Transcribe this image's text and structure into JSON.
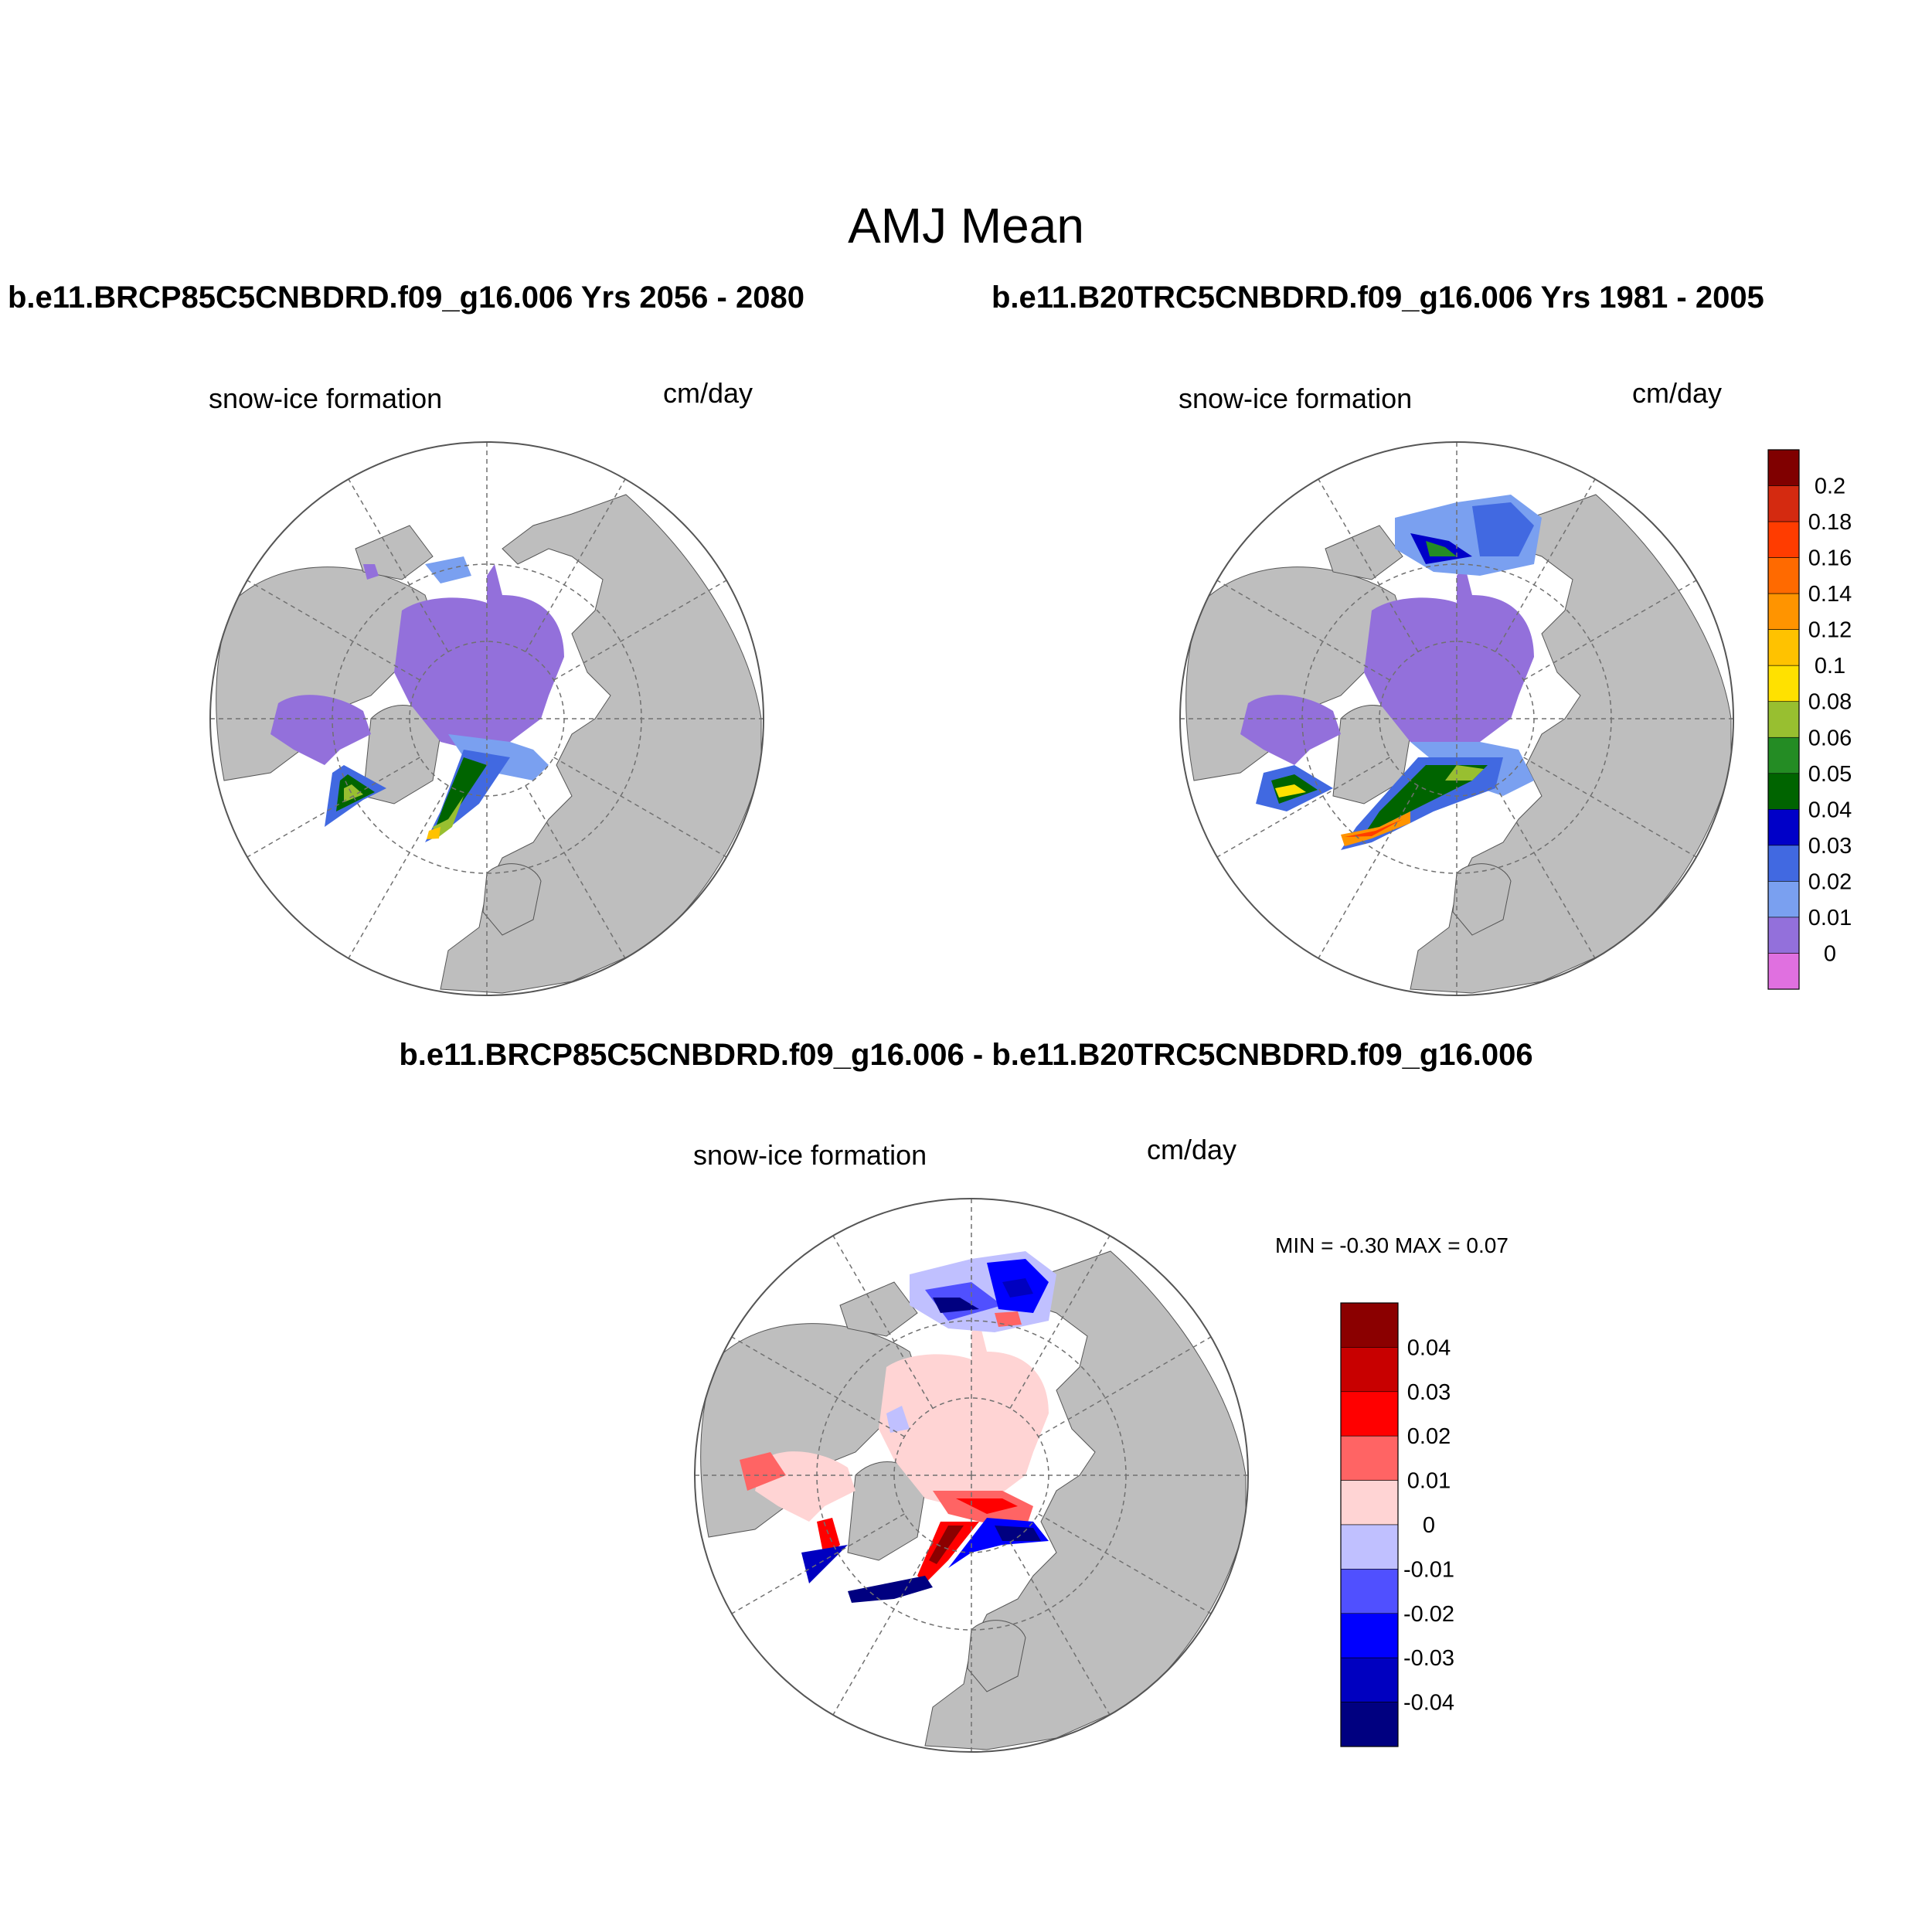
{
  "figure": {
    "title": "AMJ Mean",
    "left_case_title": "b.e11.BRCP85C5CNBDRD.f09_g16.006  Yrs 2056 - 2080",
    "right_case_title": "b.e11.B20TRC5CNBDRD.f09_g16.006  Yrs 1981 - 2005",
    "diff_title": "b.e11.BRCP85C5CNBDRD.f09_g16.006 - b.e11.B20TRC5CNBDRD.f09_g16.006"
  },
  "maps": [
    {
      "variable": "snow-ice formation",
      "units": "cm/day"
    },
    {
      "variable": "snow-ice formation",
      "units": "cm/day"
    },
    {
      "variable": "snow-ice formation",
      "units": "cm/day",
      "minmax": "MIN =  -0.30 MAX =   0.07"
    }
  ],
  "colorbar_main": {
    "ticks": [
      "0.2",
      "0.18",
      "0.16",
      "0.14",
      "0.12",
      "0.1",
      "0.08",
      "0.06",
      "0.05",
      "0.04",
      "0.03",
      "0.02",
      "0.01",
      "0"
    ],
    "colors": [
      "#800000",
      "#d42a10",
      "#ff3c00",
      "#ff6a00",
      "#ff9400",
      "#ffc200",
      "#ffe100",
      "#98bf30",
      "#248c24",
      "#006400",
      "#0000c8",
      "#4169e1",
      "#7aa0f0",
      "#9370db",
      "#e070e0"
    ]
  },
  "colorbar_diff": {
    "ticks": [
      "0.04",
      "0.03",
      "0.02",
      "0.01",
      "0",
      "-0.01",
      "-0.02",
      "-0.03",
      "-0.04"
    ],
    "colors": [
      "#8b0000",
      "#c80000",
      "#ff0000",
      "#ff6464",
      "#ffd4d4",
      "#c0c0ff",
      "#5050ff",
      "#0000ff",
      "#0000c0",
      "#000080"
    ]
  },
  "map_colors": {
    "land": "#bebebe",
    "ocean": "#ffffff",
    "grid": "#707070"
  }
}
